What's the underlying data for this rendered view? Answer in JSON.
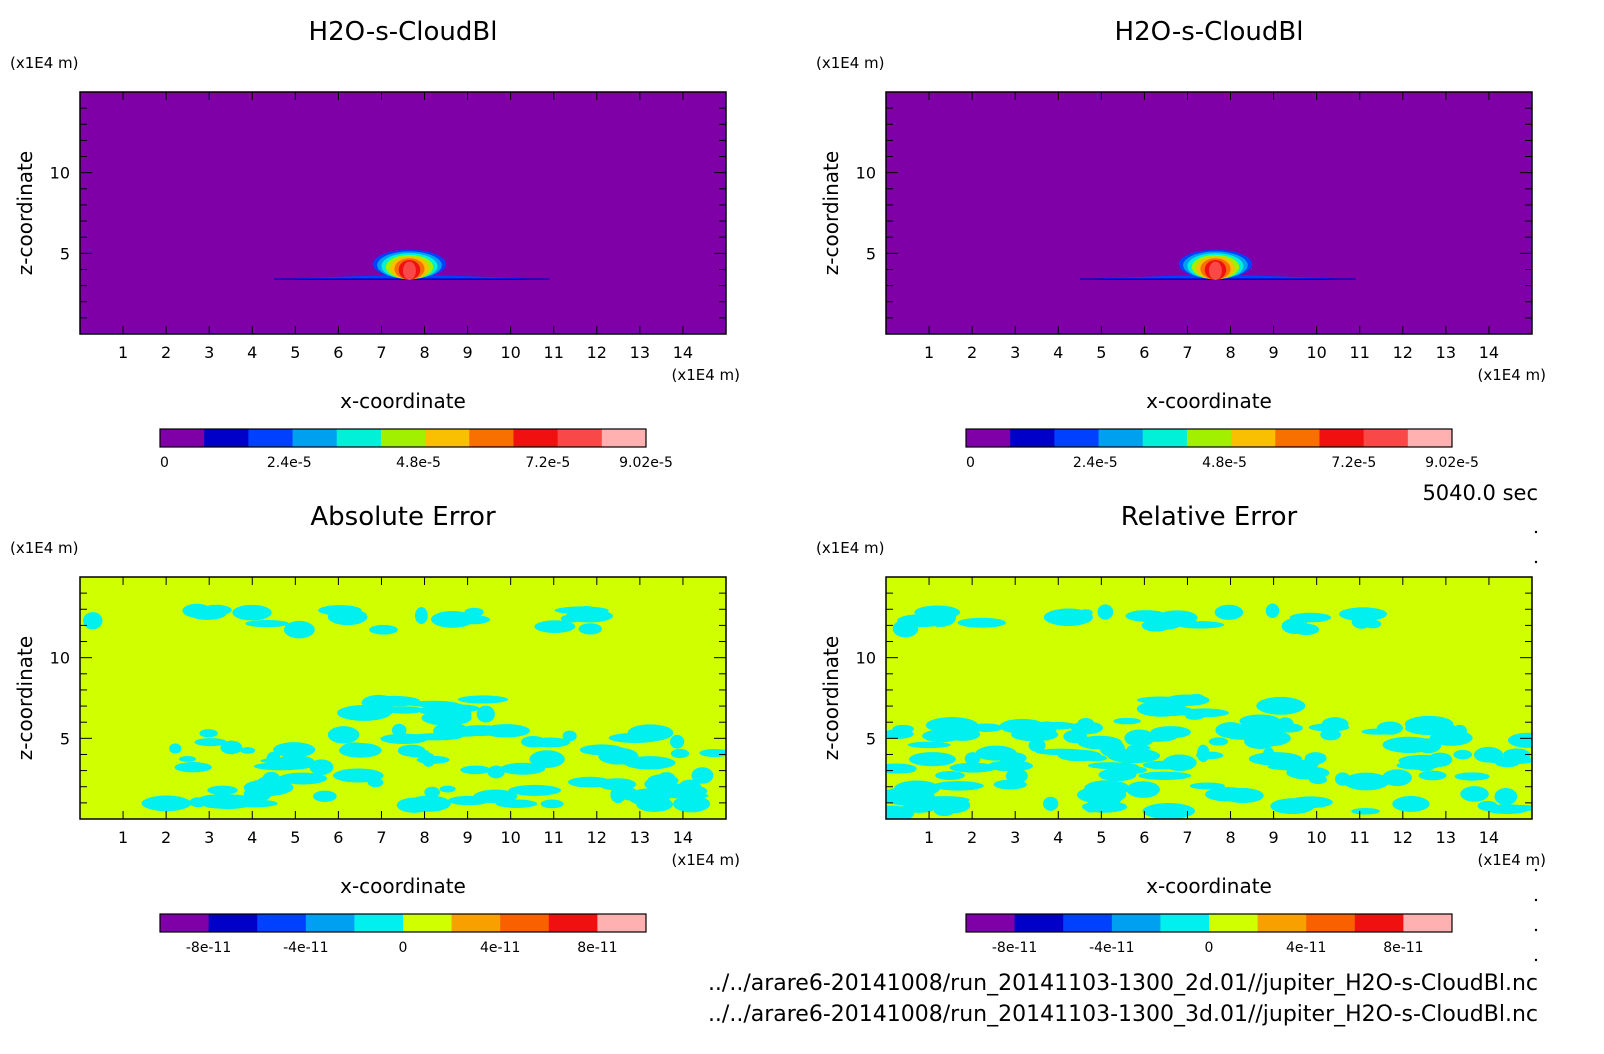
{
  "chart_data": [
    {
      "type": "heatmap",
      "title": "H2O-s-CloudBl",
      "xlabel": "x-coordinate",
      "ylabel": "z-coordinate",
      "x_unit": "(x1E4 m)",
      "y_unit": "(x1E4 m)",
      "xlim": [
        0,
        15
      ],
      "ylim": [
        0,
        15
      ],
      "x_ticks": [
        "1",
        "2",
        "3",
        "4",
        "5",
        "6",
        "7",
        "8",
        "9",
        "10",
        "11",
        "12",
        "13",
        "14"
      ],
      "y_ticks": [
        "5",
        "10"
      ],
      "background_level": 0,
      "features": [
        {
          "shape": "thin-layer",
          "x": [
            4.5,
            10.9
          ],
          "z": [
            3.4,
            3.7
          ],
          "level": 2
        },
        {
          "shape": "cloud",
          "x": [
            6.8,
            8.5
          ],
          "z": [
            3.5,
            5.0
          ],
          "levels": [
            2,
            3,
            4,
            5,
            6,
            7,
            8,
            9
          ]
        }
      ],
      "colorbar": {
        "colors": [
          "#8000a8",
          "#0000c8",
          "#0040ff",
          "#00a0f0",
          "#00f0d8",
          "#a0f000",
          "#f8c000",
          "#f87000",
          "#f01010",
          "#f84848",
          "#ffb0b0"
        ],
        "labels": [
          "0",
          "2.4e-5",
          "4.8e-5",
          "7.2e-5",
          "9.02e-5"
        ],
        "label_positions": [
          0,
          0.266,
          0.532,
          0.798,
          1.0
        ]
      }
    },
    {
      "type": "heatmap",
      "title": "H2O-s-CloudBl",
      "xlabel": "x-coordinate",
      "ylabel": "z-coordinate",
      "x_unit": "(x1E4 m)",
      "y_unit": "(x1E4 m)",
      "xlim": [
        0,
        15
      ],
      "ylim": [
        0,
        15
      ],
      "x_ticks": [
        "1",
        "2",
        "3",
        "4",
        "5",
        "6",
        "7",
        "8",
        "9",
        "10",
        "11",
        "12",
        "13",
        "14"
      ],
      "y_ticks": [
        "5",
        "10"
      ],
      "background_level": 0,
      "features": [
        {
          "shape": "thin-layer",
          "x": [
            4.5,
            10.9
          ],
          "z": [
            3.4,
            3.7
          ],
          "level": 2
        },
        {
          "shape": "cloud",
          "x": [
            6.8,
            8.5
          ],
          "z": [
            3.5,
            5.0
          ],
          "levels": [
            2,
            3,
            4,
            5,
            6,
            7,
            8,
            9
          ]
        }
      ],
      "colorbar": {
        "colors": [
          "#8000a8",
          "#0000c8",
          "#0040ff",
          "#00a0f0",
          "#00f0d8",
          "#a0f000",
          "#f8c000",
          "#f87000",
          "#f01010",
          "#f84848",
          "#ffb0b0"
        ],
        "labels": [
          "0",
          "2.4e-5",
          "4.8e-5",
          "7.2e-5",
          "9.02e-5"
        ],
        "label_positions": [
          0,
          0.266,
          0.532,
          0.798,
          1.0
        ]
      }
    },
    {
      "type": "heatmap",
      "title": "Absolute Error",
      "xlabel": "x-coordinate",
      "ylabel": "z-coordinate",
      "x_unit": "(x1E4 m)",
      "y_unit": "(x1E4 m)",
      "xlim": [
        0,
        15
      ],
      "ylim": [
        0,
        15
      ],
      "x_ticks": [
        "1",
        "2",
        "3",
        "4",
        "5",
        "6",
        "7",
        "8",
        "9",
        "10",
        "11",
        "12",
        "13",
        "14"
      ],
      "y_ticks": [
        "5",
        "10"
      ],
      "background_level": 5,
      "patch_level": 4,
      "patch_seed": 3,
      "patch_regions": [
        {
          "x": [
            0,
            12.5
          ],
          "z": [
            11.7,
            13.0
          ],
          "count": 22
        },
        {
          "x": [
            2.0,
            15
          ],
          "z": [
            0.8,
            5.5
          ],
          "count": 80
        },
        {
          "x": [
            5.5,
            9.5
          ],
          "z": [
            5.0,
            7.5
          ],
          "count": 18
        }
      ],
      "colorbar": {
        "colors": [
          "#8000a8",
          "#0000c8",
          "#0040ff",
          "#00a0f0",
          "#00f0f0",
          "#d0ff00",
          "#f8a000",
          "#f86000",
          "#f01010",
          "#ffb0b0"
        ],
        "labels": [
          "-8e-11",
          "-4e-11",
          "0",
          "4e-11",
          "8e-11"
        ],
        "label_positions": [
          0.1,
          0.3,
          0.5,
          0.7,
          0.9
        ]
      }
    },
    {
      "type": "heatmap",
      "title": "Relative Error",
      "xlabel": "x-coordinate",
      "ylabel": "z-coordinate",
      "x_unit": "(x1E4 m)",
      "y_unit": "(x1E4 m)",
      "xlim": [
        0,
        15
      ],
      "ylim": [
        0,
        15
      ],
      "x_ticks": [
        "1",
        "2",
        "3",
        "4",
        "5",
        "6",
        "7",
        "8",
        "9",
        "10",
        "11",
        "12",
        "13",
        "14"
      ],
      "y_ticks": [
        "5",
        "10"
      ],
      "background_level": 5,
      "patch_level": 4,
      "patch_seed": 11,
      "patch_regions": [
        {
          "x": [
            0,
            12.5
          ],
          "z": [
            11.7,
            13.0
          ],
          "count": 22
        },
        {
          "x": [
            0,
            15
          ],
          "z": [
            0.3,
            6.0
          ],
          "count": 120
        },
        {
          "x": [
            5.5,
            9.5
          ],
          "z": [
            5.0,
            7.5
          ],
          "count": 20
        }
      ],
      "colorbar": {
        "colors": [
          "#8000a8",
          "#0000c8",
          "#0040ff",
          "#00a0f0",
          "#00f0f0",
          "#d0ff00",
          "#f8a000",
          "#f86000",
          "#f01010",
          "#ffb0b0"
        ],
        "labels": [
          "-8e-11",
          "-4e-11",
          "0",
          "4e-11",
          "8e-11"
        ],
        "label_positions": [
          0.1,
          0.3,
          0.5,
          0.7,
          0.9
        ]
      }
    }
  ],
  "time_label": "5040.0 sec",
  "file_paths": [
    "../../arare6-20141008/run_20141103-1300_2d.01//jupiter_H2O-s-CloudBl.nc",
    "../../arare6-20141008/run_20141103-1300_3d.01//jupiter_H2O-s-CloudBl.nc"
  ]
}
